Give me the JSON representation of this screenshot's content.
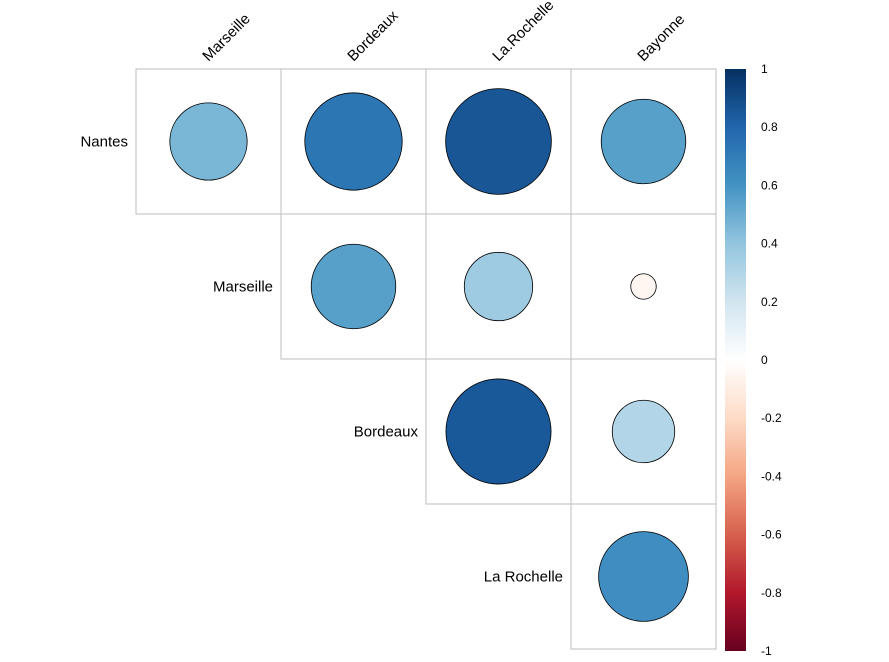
{
  "colors": {
    "negative_strong": "#67001F",
    "neutral": "#FFFFFF",
    "positive_strong": "#053061"
  },
  "chart_data": {
    "type": "heatmap",
    "style": "correlation-circle-upper-triangle",
    "column_labels": [
      "Marseille",
      "Bordeaux",
      "La.Rochelle",
      "Bayonne"
    ],
    "row_labels": [
      "Nantes",
      "Marseille",
      "Bordeaux",
      "La Rochelle"
    ],
    "values": [
      [
        0.46,
        0.73,
        0.86,
        0.55
      ],
      [
        null,
        0.55,
        0.36,
        -0.05
      ],
      [
        null,
        null,
        0.85,
        0.3
      ],
      [
        null,
        null,
        null,
        0.62
      ]
    ],
    "colorbar": {
      "range": [
        -1,
        1
      ],
      "ticks": [
        "1",
        "0.8",
        "0.6",
        "0.4",
        "0.2",
        "0",
        "-0.2",
        "-0.4",
        "-0.6",
        "-0.8",
        "-1"
      ]
    }
  }
}
